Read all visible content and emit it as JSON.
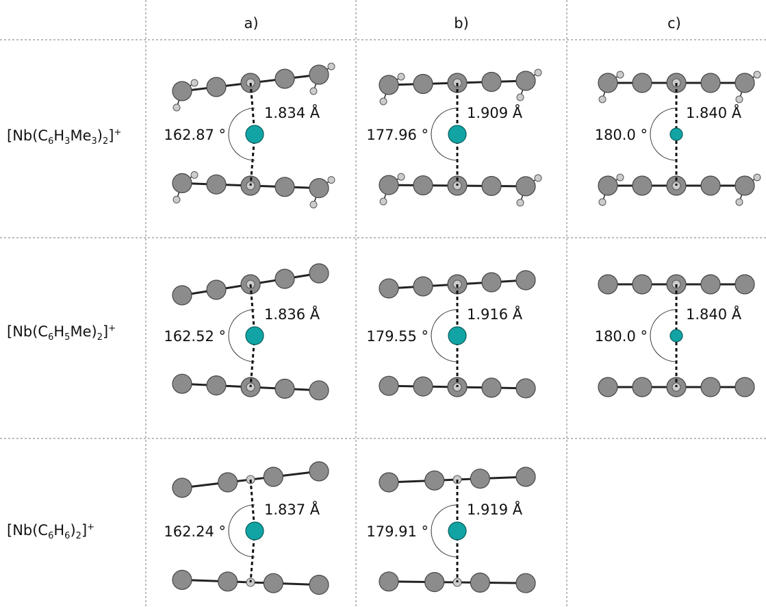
{
  "header": {
    "columns": [
      "a)",
      "b)",
      "c)"
    ]
  },
  "rows": [
    {
      "label": [
        "[Nb(C",
        "6",
        "H",
        "3",
        "Me",
        "3",
        ")",
        "2",
        "]",
        "+"
      ],
      "cells": [
        {
          "distance": "1.834 Å",
          "angle": "162.87 °"
        },
        {
          "distance": "1.909 Å",
          "angle": "177.96 °"
        },
        {
          "distance": "1.840 Å",
          "angle": "180.0 °"
        }
      ]
    },
    {
      "label": [
        "[Nb(C",
        "6",
        "H",
        "5",
        "Me",
        ")",
        "2",
        "]",
        "+"
      ],
      "cells": [
        {
          "distance": "1.836 Å",
          "angle": "162.52 °"
        },
        {
          "distance": "1.916 Å",
          "angle": "179.55 °"
        },
        {
          "distance": "1.840 Å",
          "angle": "180.0 °"
        }
      ]
    },
    {
      "label": [
        "[Nb(C",
        "6",
        "H",
        "6",
        ")",
        "2",
        "]",
        "+"
      ],
      "cells": [
        {
          "distance": "1.837 Å",
          "angle": "162.24 °"
        },
        {
          "distance": "1.919 Å",
          "angle": "179.91 °"
        }
      ]
    }
  ]
}
